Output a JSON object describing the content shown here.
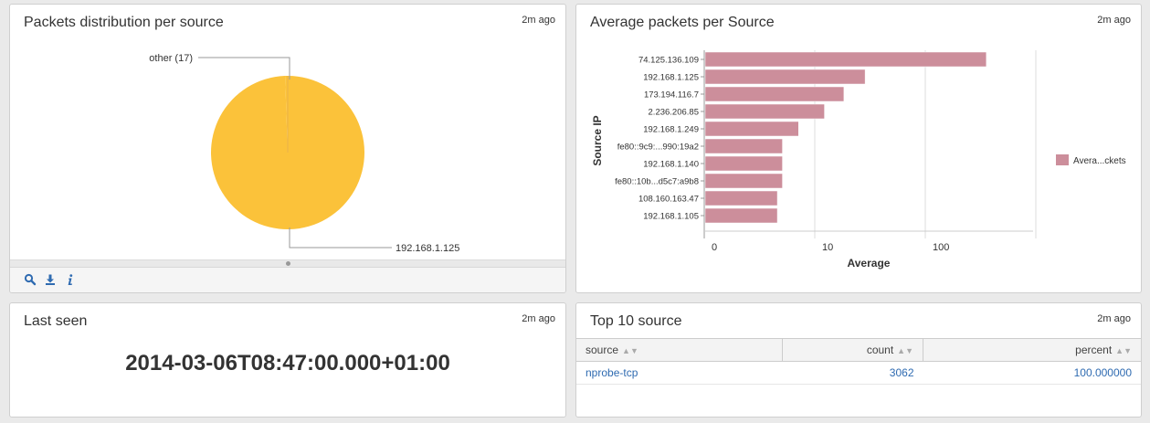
{
  "pie_panel": {
    "title": "Packets distribution per source",
    "time": "2m ago",
    "chart_data": {
      "type": "pie",
      "slices": [
        {
          "label": "192.168.1.125",
          "value": 3045
        },
        {
          "label": "other (17)",
          "value": 17
        }
      ],
      "colors": [
        "#fbc23a",
        "#fbc23a"
      ]
    },
    "footer_icons": [
      "search-icon",
      "download-icon",
      "info-icon"
    ]
  },
  "bar_panel": {
    "title": "Average packets per Source",
    "time": "2m ago",
    "chart_data": {
      "type": "bar",
      "orientation": "horizontal",
      "categories": [
        "74.125.136.109",
        "192.168.1.125",
        "173.194.116.7",
        "2.236.206.85",
        "192.168.1.249",
        "fe80::9c9:...990:19a2",
        "192.168.1.140",
        "fe80::10b...d5c7:a9b8",
        "108.160.163.47",
        "192.168.1.105"
      ],
      "values": [
        350,
        28,
        18,
        12,
        7,
        5,
        5,
        5,
        4.5,
        4.5
      ],
      "xlabel": "Average",
      "ylabel": "Source IP",
      "x_scale": "log",
      "x_ticks": [
        "0",
        "10",
        "100"
      ],
      "legend": "Avera...ckets",
      "legend_position": "right",
      "bar_color": "#cc8e9b",
      "grid": true
    }
  },
  "last_seen_panel": {
    "title": "Last seen",
    "time": "2m ago",
    "value": "2014-03-06T08:47:00.000+01:00"
  },
  "top_panel": {
    "title": "Top 10 source",
    "time": "2m ago",
    "columns": [
      "source",
      "count",
      "percent"
    ],
    "rows": [
      {
        "source": "nprobe-tcp",
        "count": "3062",
        "percent": "100.000000"
      }
    ]
  }
}
